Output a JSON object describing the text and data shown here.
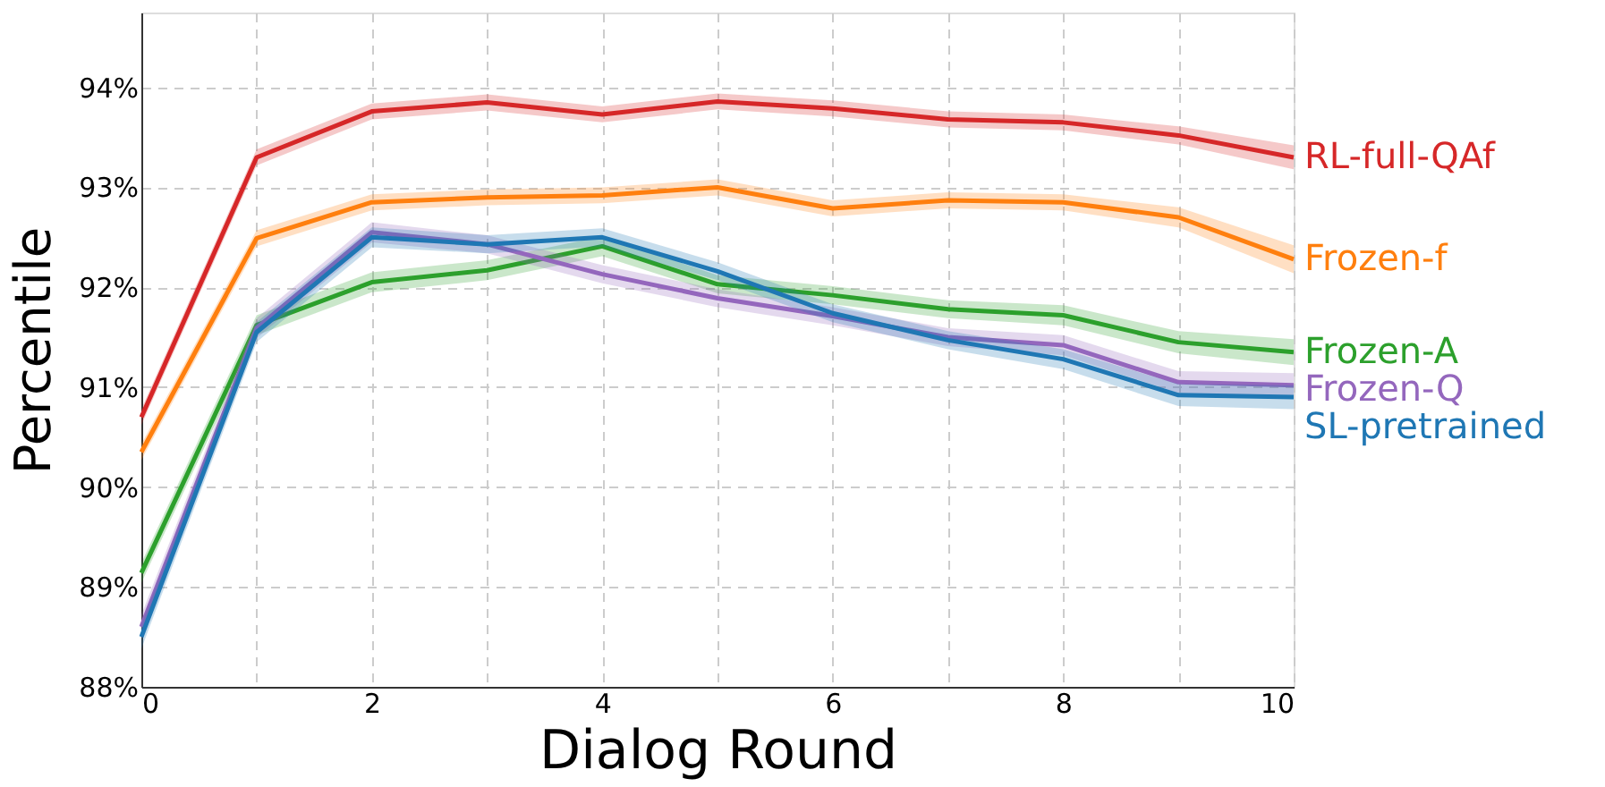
{
  "chart_data": {
    "type": "line",
    "xlabel": "Dialog Round",
    "ylabel": "Percentile",
    "x": [
      0,
      1,
      2,
      3,
      4,
      5,
      6,
      7,
      8,
      9,
      10
    ],
    "xlim": [
      0,
      10
    ],
    "ylim": [
      88,
      94.75
    ],
    "xticks": [
      0,
      {
        "value": 1,
        "label": null
      },
      2,
      {
        "value": 3,
        "label": null
      },
      4,
      {
        "value": 5,
        "label": null
      },
      6,
      {
        "value": 7,
        "label": null
      },
      8,
      {
        "value": 9,
        "label": null
      },
      10
    ],
    "yticks": [
      {
        "value": 88,
        "label": "88%"
      },
      {
        "value": 89,
        "label": "89%"
      },
      {
        "value": 90,
        "label": "90%"
      },
      {
        "value": 91,
        "label": "91%"
      },
      {
        "value": 92,
        "label": "92%"
      },
      {
        "value": 93,
        "label": "93%"
      },
      {
        "value": 94,
        "label": "94%"
      }
    ],
    "grid": true,
    "legend": false,
    "marker": "none",
    "line_style": "solid",
    "series": [
      {
        "name": "RL-full-QAf",
        "color": "#d62728",
        "values": [
          90.7,
          93.3,
          93.76,
          93.85,
          93.73,
          93.86,
          93.79,
          93.68,
          93.65,
          93.52,
          93.3
        ],
        "lower": [
          90.62,
          93.22,
          93.68,
          93.77,
          93.65,
          93.78,
          93.71,
          93.6,
          93.57,
          93.43,
          93.18
        ],
        "upper": [
          90.78,
          93.38,
          93.84,
          93.93,
          93.81,
          93.94,
          93.87,
          93.76,
          93.73,
          93.61,
          93.42
        ]
      },
      {
        "name": "Frozen-f",
        "color": "#ff7f0e",
        "values": [
          90.35,
          92.49,
          92.85,
          92.9,
          92.92,
          93.0,
          92.79,
          92.87,
          92.85,
          92.7,
          92.28
        ],
        "lower": [
          90.27,
          92.41,
          92.77,
          92.82,
          92.84,
          92.92,
          92.71,
          92.79,
          92.77,
          92.6,
          92.14
        ],
        "upper": [
          90.43,
          92.57,
          92.93,
          92.98,
          93.0,
          93.08,
          92.87,
          92.95,
          92.93,
          92.8,
          92.42
        ]
      },
      {
        "name": "Frozen-A",
        "color": "#2ca02c",
        "values": [
          89.14,
          91.62,
          92.05,
          92.17,
          92.41,
          92.03,
          91.92,
          91.78,
          91.72,
          91.45,
          91.35
        ],
        "lower": [
          89.04,
          91.52,
          91.95,
          92.07,
          92.31,
          91.94,
          91.83,
          91.69,
          91.62,
          91.34,
          91.22
        ],
        "upper": [
          89.24,
          91.72,
          92.15,
          92.27,
          92.51,
          92.12,
          92.01,
          91.87,
          91.82,
          91.56,
          91.48
        ]
      },
      {
        "name": "Frozen-Q",
        "color": "#9467bd",
        "values": [
          88.6,
          91.59,
          92.55,
          92.43,
          92.13,
          91.89,
          91.71,
          91.5,
          91.42,
          91.05,
          91.02
        ],
        "lower": [
          88.48,
          91.49,
          92.45,
          92.34,
          92.04,
          91.8,
          91.62,
          91.41,
          91.32,
          90.94,
          90.9
        ],
        "upper": [
          88.72,
          91.69,
          92.65,
          92.52,
          92.22,
          91.98,
          91.8,
          91.59,
          91.52,
          91.16,
          91.14
        ]
      },
      {
        "name": "SL-pretrained",
        "color": "#1f77b4",
        "values": [
          88.5,
          91.55,
          92.5,
          92.43,
          92.5,
          92.16,
          91.74,
          91.47,
          91.28,
          90.92,
          90.9
        ],
        "lower": [
          88.38,
          91.45,
          92.4,
          92.34,
          92.41,
          92.07,
          91.65,
          91.38,
          91.18,
          90.81,
          90.78
        ],
        "upper": [
          88.62,
          91.65,
          92.6,
          92.52,
          92.59,
          92.25,
          91.83,
          91.56,
          91.38,
          91.03,
          91.02
        ]
      }
    ]
  }
}
